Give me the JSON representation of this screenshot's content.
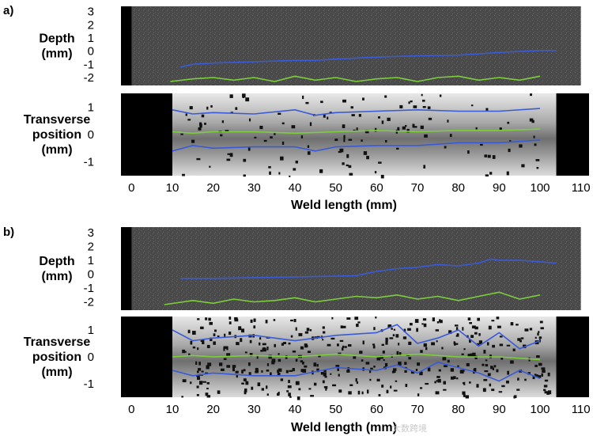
{
  "watermark": "大数跨境",
  "chart_data": [
    {
      "panel_label": "a)",
      "subplots": [
        {
          "type": "line",
          "ylabel_lines": [
            "Depth",
            "(mm)"
          ],
          "ylim": [
            -2.6,
            3.4
          ],
          "yticks": [
            "3",
            "2",
            "1",
            "0",
            "-1",
            "-2"
          ],
          "ytick_values": [
            3,
            2,
            1,
            0,
            -1,
            -2
          ],
          "background": "dark gray image",
          "series": [
            {
              "color": "#3a5bd9",
              "x": [
                12,
                15,
                20,
                30,
                40,
                45,
                50,
                60,
                70,
                80,
                90,
                100,
                104
              ],
              "y": [
                -1.2,
                -1.0,
                -0.9,
                -0.8,
                -0.7,
                -0.7,
                -0.6,
                -0.45,
                -0.35,
                -0.3,
                -0.1,
                0.05,
                0.05
              ]
            },
            {
              "color": "#7ccf3a",
              "x": [
                9.5,
                15,
                20,
                25,
                30,
                35,
                40,
                45,
                50,
                55,
                60,
                65,
                70,
                75,
                80,
                85,
                90,
                95,
                100
              ],
              "y": [
                -2.3,
                -2.1,
                -2.0,
                -2.2,
                -2.0,
                -2.3,
                -1.9,
                -2.2,
                -2.0,
                -2.3,
                -2.1,
                -2.0,
                -2.3,
                -2.0,
                -1.9,
                -2.2,
                -2.0,
                -2.2,
                -1.9
              ]
            }
          ]
        },
        {
          "type": "line",
          "ylabel_lines": [
            "Transverse",
            "position",
            "(mm)"
          ],
          "ylim": [
            -1.5,
            1.5
          ],
          "yticks": [
            "1",
            "0",
            "-1"
          ],
          "ytick_values": [
            1,
            0,
            -1
          ],
          "background": "gray weld image",
          "series": [
            {
              "color": "#3a5bd9",
              "x": [
                10,
                15,
                20,
                30,
                40,
                45,
                50,
                60,
                70,
                80,
                90,
                100
              ],
              "y": [
                0.9,
                0.75,
                0.8,
                0.75,
                0.9,
                0.7,
                0.8,
                0.85,
                0.9,
                0.85,
                0.85,
                0.95
              ]
            },
            {
              "color": "#7ccf3a",
              "x": [
                10,
                15,
                20,
                30,
                40,
                50,
                60,
                70,
                80,
                90,
                100
              ],
              "y": [
                0.1,
                0.05,
                0.1,
                0.1,
                0.05,
                0.1,
                0.15,
                0.1,
                0.15,
                0.15,
                0.2
              ]
            },
            {
              "color": "#3a5bd9",
              "x": [
                10,
                15,
                20,
                30,
                40,
                45,
                50,
                60,
                70,
                80,
                90,
                100
              ],
              "y": [
                -0.6,
                -0.4,
                -0.5,
                -0.45,
                -0.45,
                -0.6,
                -0.45,
                -0.4,
                -0.4,
                -0.3,
                -0.3,
                -0.2
              ]
            }
          ]
        }
      ],
      "xticks": [
        "0",
        "10",
        "20",
        "30",
        "40",
        "50",
        "60",
        "70",
        "80",
        "90",
        "100",
        "110"
      ],
      "xtick_values": [
        0,
        10,
        20,
        30,
        40,
        50,
        60,
        70,
        80,
        90,
        100,
        110
      ],
      "xlim": [
        -8,
        112
      ],
      "xlabel": "Weld length (mm)"
    },
    {
      "panel_label": "b)",
      "subplots": [
        {
          "type": "line",
          "ylabel_lines": [
            "Depth",
            "(mm)"
          ],
          "ylim": [
            -2.6,
            3.4
          ],
          "yticks": [
            "3",
            "2",
            "1",
            "0",
            "-1",
            "-2"
          ],
          "ytick_values": [
            3,
            2,
            1,
            0,
            -1,
            -2
          ],
          "background": "dark gray image",
          "series": [
            {
              "color": "#3a5bd9",
              "x": [
                12,
                20,
                30,
                40,
                50,
                55,
                60,
                65,
                70,
                75,
                80,
                85,
                88,
                90,
                95,
                100,
                104
              ],
              "y": [
                -0.3,
                -0.3,
                -0.25,
                -0.2,
                -0.15,
                -0.1,
                0.2,
                0.4,
                0.5,
                0.7,
                0.6,
                0.8,
                1.1,
                1.0,
                1.0,
                0.9,
                0.8
              ]
            },
            {
              "color": "#7ccf3a",
              "x": [
                8,
                15,
                20,
                25,
                30,
                35,
                40,
                45,
                50,
                55,
                60,
                65,
                70,
                75,
                80,
                85,
                90,
                95,
                100
              ],
              "y": [
                -2.2,
                -1.9,
                -2.1,
                -1.8,
                -2.0,
                -1.9,
                -1.7,
                -2.0,
                -1.8,
                -1.6,
                -1.7,
                -1.5,
                -1.8,
                -1.6,
                -1.9,
                -1.6,
                -1.3,
                -1.8,
                -1.5
              ]
            }
          ]
        },
        {
          "type": "line",
          "ylabel_lines": [
            "Transverse",
            "position",
            "(mm)"
          ],
          "ylim": [
            -1.5,
            1.5
          ],
          "yticks": [
            "1",
            "0",
            "-1"
          ],
          "ytick_values": [
            1,
            0,
            -1
          ],
          "background": "gray weld image with dark spatter",
          "series": [
            {
              "color": "#3a5bd9",
              "x": [
                10,
                15,
                20,
                30,
                40,
                50,
                60,
                65,
                70,
                75,
                80,
                85,
                90,
                95,
                100
              ],
              "y": [
                1.0,
                0.6,
                0.7,
                0.8,
                0.6,
                0.8,
                0.9,
                1.2,
                0.5,
                0.7,
                1.0,
                0.4,
                0.9,
                0.3,
                0.6
              ]
            },
            {
              "color": "#7ccf3a",
              "x": [
                10,
                15,
                20,
                30,
                40,
                50,
                60,
                70,
                80,
                90,
                100
              ],
              "y": [
                0.0,
                0.05,
                0.0,
                0.05,
                0.0,
                0.1,
                0.0,
                0.1,
                0.0,
                0.0,
                -0.1
              ]
            },
            {
              "color": "#3a5bd9",
              "x": [
                10,
                15,
                20,
                30,
                40,
                50,
                60,
                65,
                70,
                75,
                80,
                85,
                90,
                95,
                100
              ],
              "y": [
                -0.5,
                -0.7,
                -0.6,
                -0.7,
                -0.7,
                -0.4,
                -0.5,
                -0.3,
                -0.6,
                -0.2,
                -0.4,
                -0.6,
                -0.9,
                -0.5,
                -0.8
              ]
            }
          ]
        }
      ],
      "xticks": [
        "0",
        "10",
        "20",
        "30",
        "40",
        "50",
        "60",
        "70",
        "80",
        "90",
        "100",
        "110"
      ],
      "xtick_values": [
        0,
        10,
        20,
        30,
        40,
        50,
        60,
        70,
        80,
        90,
        100,
        110
      ],
      "xlim": [
        -8,
        112
      ],
      "xlabel": "Weld length (mm)"
    }
  ]
}
